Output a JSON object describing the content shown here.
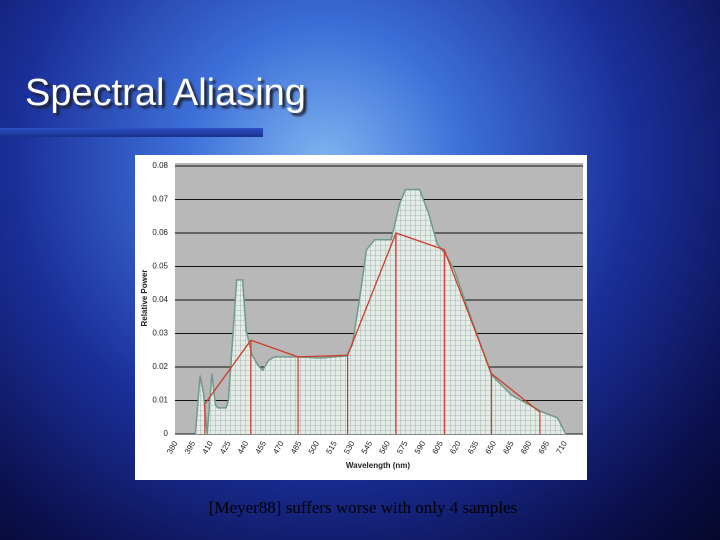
{
  "slide": {
    "title": "Spectral Aliasing",
    "caption": "[Meyer88] suffers worse with only 4 samples"
  },
  "chart_data": {
    "type": "line",
    "x_label": "Wavelength (nm)",
    "y_label": "Relative Power",
    "xlim": [
      380,
      725
    ],
    "xticks": [
      380,
      395,
      410,
      425,
      440,
      455,
      470,
      485,
      500,
      515,
      530,
      545,
      560,
      575,
      590,
      605,
      620,
      635,
      650,
      665,
      680,
      695,
      710
    ],
    "ylim": [
      0,
      0.08
    ],
    "yticks": [
      0,
      0.01,
      0.02,
      0.03,
      0.04,
      0.05,
      0.06,
      0.07,
      0.08
    ],
    "grid": true,
    "series": [
      {
        "color": "#6f9a8a",
        "x": [
          399,
          403,
          406,
          407,
          409,
          413,
          416,
          418,
          425,
          427,
          434,
          439,
          442,
          447,
          452,
          456,
          461,
          466,
          485,
          505,
          527,
          532,
          538,
          544,
          551,
          565,
          572,
          577,
          589,
          597,
          604,
          611,
          618,
          633,
          650,
          667,
          693,
          706,
          713
        ],
        "values": [
          0,
          0.0175,
          0.0117,
          0.007,
          0,
          0.018,
          0.0087,
          0.0078,
          0.0078,
          0.01,
          0.046,
          0.046,
          0.031,
          0.0236,
          0.0206,
          0.019,
          0.022,
          0.023,
          0.023,
          0.0227,
          0.0233,
          0.0266,
          0.04,
          0.055,
          0.058,
          0.058,
          0.0686,
          0.073,
          0.073,
          0.0655,
          0.0567,
          0.0537,
          0.0493,
          0.0343,
          0.0176,
          0.0116,
          0.0066,
          0.0048,
          0
        ]
      },
      {
        "color": "#d03a2a",
        "x": [
          407,
          446,
          486,
          528,
          569,
          610,
          650,
          691
        ],
        "values": [
          0.009,
          0.028,
          0.023,
          0.0235,
          0.06,
          0.055,
          0.018,
          0.0065
        ]
      }
    ]
  }
}
